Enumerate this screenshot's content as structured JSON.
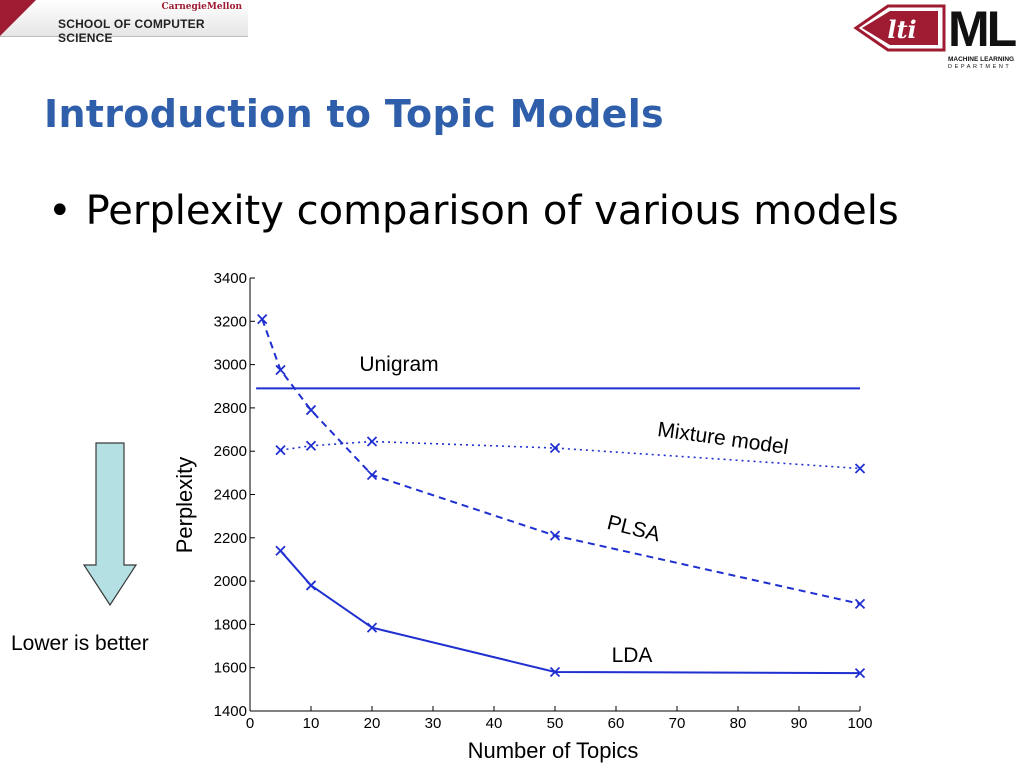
{
  "header": {
    "brand": "CarnegieMellon",
    "school": "SCHOOL OF COMPUTER SCIENCE",
    "lti_logo_text": "lti",
    "ml_logo_text": "ML",
    "ml_logo_line1": "MACHINE LEARNING",
    "ml_logo_line2": "DEPARTMENT"
  },
  "slide": {
    "title": "Introduction to Topic Models",
    "bullet_marker": "•",
    "bullet_text": "Perplexity comparison of various models"
  },
  "annotation": {
    "arrow_label": "Lower is better",
    "arrow_color": "#b4dfe3"
  },
  "chart_data": {
    "type": "line",
    "xlabel": "Number of Topics",
    "ylabel": "Perplexity",
    "xlim": [
      0,
      100
    ],
    "ylim": [
      1400,
      3400
    ],
    "xticks": [
      0,
      10,
      20,
      30,
      40,
      50,
      60,
      70,
      80,
      90,
      100
    ],
    "yticks": [
      1400,
      1600,
      1800,
      2000,
      2200,
      2400,
      2600,
      2800,
      3000,
      3200,
      3400
    ],
    "color": "#1f2fd0",
    "series": [
      {
        "name": "Unigram",
        "style": "solid-line",
        "markers": false,
        "x": [
          1,
          100
        ],
        "y": [
          2890,
          2890
        ]
      },
      {
        "name": "Mixture model",
        "style": "dotted",
        "markers": true,
        "x": [
          5,
          10,
          20,
          50,
          100
        ],
        "y": [
          2605,
          2625,
          2645,
          2615,
          2520
        ]
      },
      {
        "name": "PLSA",
        "style": "dashed",
        "markers": true,
        "x": [
          2,
          5,
          10,
          20,
          50,
          100
        ],
        "y": [
          3210,
          2975,
          2790,
          2490,
          2210,
          1895
        ]
      },
      {
        "name": "LDA",
        "style": "solid",
        "markers": true,
        "x": [
          5,
          10,
          20,
          50,
          100
        ],
        "y": [
          2140,
          1980,
          1785,
          1580,
          1575
        ]
      }
    ]
  }
}
